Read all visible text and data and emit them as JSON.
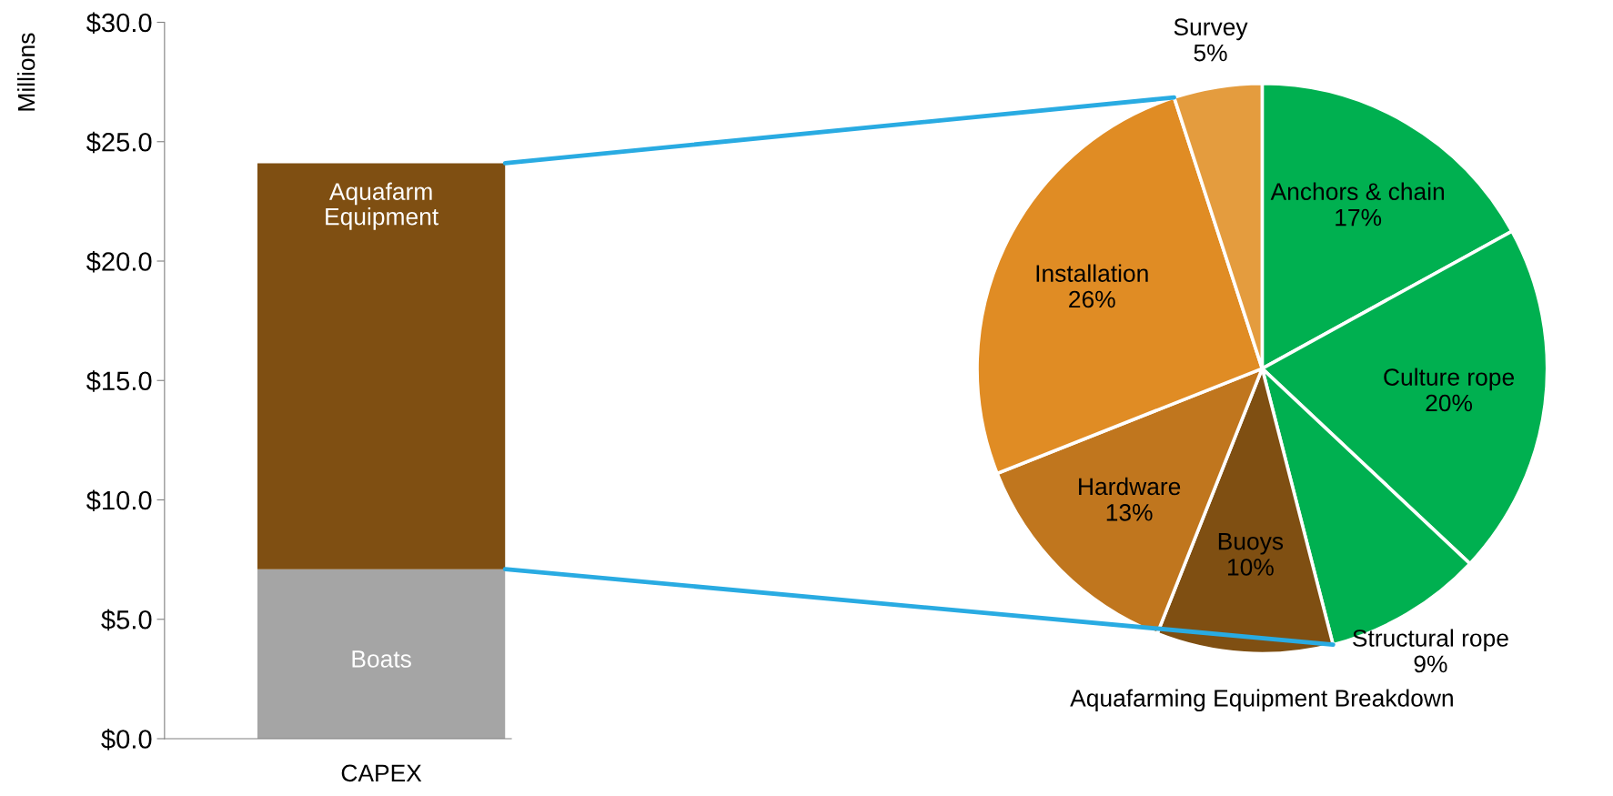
{
  "chart_data": [
    {
      "type": "bar",
      "stacked": true,
      "categories": [
        "CAPEX"
      ],
      "ylabel": "Millions",
      "series": [
        {
          "name": "Boats",
          "color": "#a5a5a5",
          "values": [
            7.1
          ]
        },
        {
          "name": "Aquafarm\nEquipment",
          "color": "#7f4f12",
          "values": [
            17.0
          ]
        }
      ],
      "ylim": [
        0,
        30
      ],
      "yticks": [
        {
          "value": 0,
          "label": "$0.0"
        },
        {
          "value": 5,
          "label": "$5.0"
        },
        {
          "value": 10,
          "label": "$10.0"
        },
        {
          "value": 15,
          "label": "$15.0"
        },
        {
          "value": 20,
          "label": "$20.0"
        },
        {
          "value": 25,
          "label": "$25.0"
        },
        {
          "value": 30,
          "label": "$30.0"
        }
      ],
      "grid": false,
      "legend": false
    },
    {
      "type": "pie",
      "title": "Aquafarming Equipment Breakdown",
      "categories": [
        "Anchors & chain",
        "Culture rope",
        "Structural rope",
        "Buoys",
        "Hardware",
        "Installation",
        "Survey"
      ],
      "values": [
        17,
        20,
        9,
        10,
        13,
        26,
        5
      ],
      "colors": [
        "#00b050",
        "#00b050",
        "#00b050",
        "#7f4f12",
        "#c0761e",
        "#e08c24",
        "#e49c3e"
      ],
      "value_labels": [
        "17%",
        "20%",
        "9%",
        "10%",
        "13%",
        "26%",
        "5%"
      ],
      "legend": false
    }
  ]
}
